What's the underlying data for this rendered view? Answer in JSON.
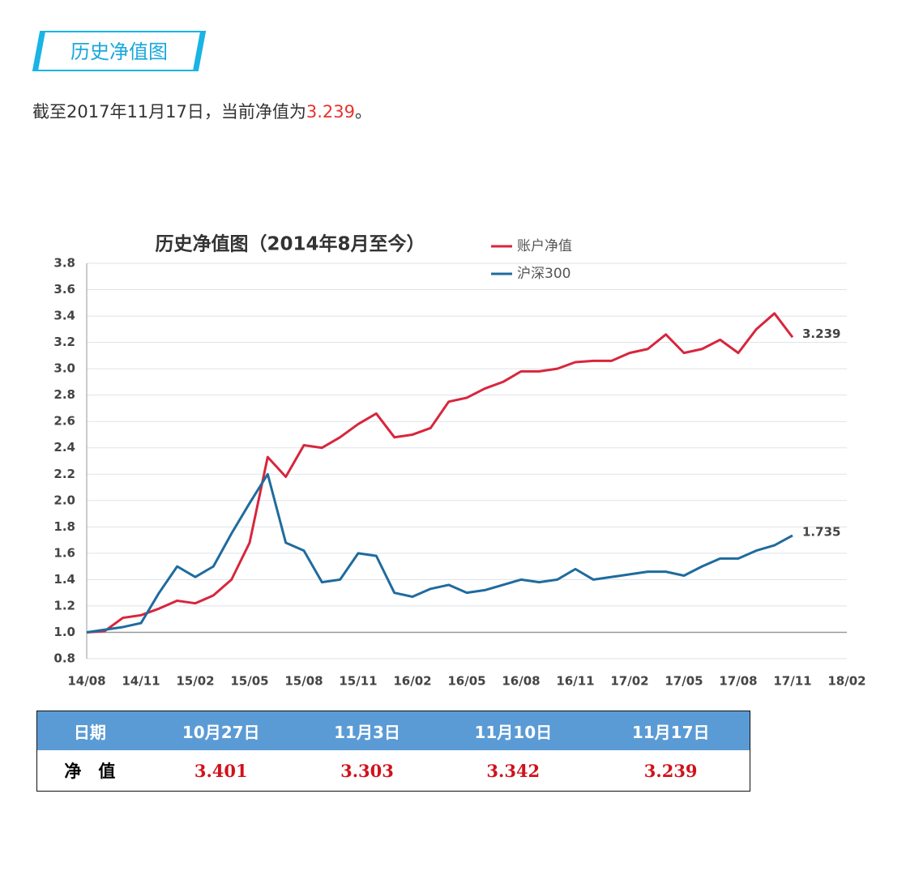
{
  "header": {
    "title": "历史净值图"
  },
  "intro": {
    "text": "截至2017年11月17日，当前净值为",
    "highlight": "3.239",
    "end": "。"
  },
  "chart_data": {
    "type": "line",
    "title": "历史净值图（2014年8月至今）",
    "categories": [
      "14/08",
      null,
      null,
      "14/11",
      null,
      null,
      "15/02",
      null,
      null,
      "15/05",
      null,
      null,
      "15/08",
      null,
      null,
      "15/11",
      null,
      null,
      "16/02",
      null,
      null,
      "16/05",
      null,
      null,
      "16/08",
      null,
      null,
      "16/11",
      null,
      null,
      "17/02",
      null,
      null,
      "17/05",
      null,
      null,
      "17/08",
      null,
      null,
      "17/11",
      null,
      null,
      "18/02"
    ],
    "series": [
      {
        "name": "账户净值",
        "color": "#d7263d",
        "values": [
          1.0,
          1.01,
          1.11,
          1.13,
          1.18,
          1.24,
          1.22,
          1.28,
          1.4,
          1.68,
          2.33,
          2.18,
          2.42,
          2.4,
          2.48,
          2.58,
          2.66,
          2.48,
          2.5,
          2.55,
          2.75,
          2.78,
          2.85,
          2.9,
          2.98,
          2.98,
          3.0,
          3.05,
          3.06,
          3.06,
          3.12,
          3.15,
          3.26,
          3.12,
          3.15,
          3.22,
          3.12,
          3.3,
          3.42,
          3.239,
          null,
          null,
          null
        ]
      },
      {
        "name": "沪深300",
        "color": "#1f6b9e",
        "values": [
          1.0,
          1.02,
          1.04,
          1.07,
          1.3,
          1.5,
          1.42,
          1.5,
          1.75,
          1.98,
          2.2,
          1.68,
          1.62,
          1.38,
          1.4,
          1.6,
          1.58,
          1.3,
          1.27,
          1.33,
          1.36,
          1.3,
          1.32,
          1.36,
          1.4,
          1.38,
          1.4,
          1.48,
          1.4,
          1.42,
          1.44,
          1.46,
          1.46,
          1.43,
          1.5,
          1.56,
          1.56,
          1.62,
          1.66,
          1.735,
          null,
          null,
          null
        ]
      }
    ],
    "ylim": [
      0.8,
      3.8
    ],
    "yticks": [
      0.8,
      {
        "value": 1,
        "label": "1.0"
      },
      1.2,
      1.4,
      1.6,
      1.8,
      {
        "value": 2,
        "label": "2.0"
      },
      2.2,
      2.4,
      2.6,
      2.8,
      {
        "value": 3,
        "label": "3.0"
      },
      3.2,
      3.4,
      3.6,
      3.8
    ],
    "grid": true,
    "legend": "top"
  },
  "table": {
    "header": [
      "日期",
      "10月27日",
      "11月3日",
      "11月10日",
      "11月17日"
    ],
    "rows": [
      [
        "净　值",
        "3.401",
        "3.303",
        "3.342",
        "3.239"
      ]
    ]
  }
}
